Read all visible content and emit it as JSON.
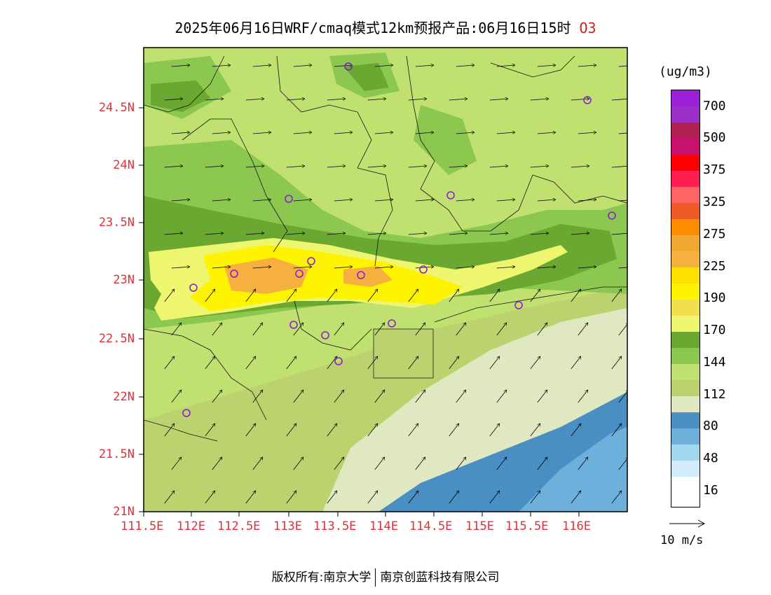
{
  "title": {
    "main": "2025年06月16日WRF/cmaq模式12km预报产品:06月16日15时",
    "species": "O3"
  },
  "axes": {
    "y_labels": [
      "24.5N",
      "24N",
      "23.5N",
      "23N",
      "22.5N",
      "22N",
      "21.5N",
      "21N"
    ],
    "x_labels": [
      "111.5E",
      "112E",
      "112.5E",
      "113E",
      "113.5E",
      "114E",
      "114.5E",
      "115E",
      "115.5E",
      "116E"
    ]
  },
  "legend": {
    "unit": "(ug/m3)",
    "labels": [
      "700",
      "500",
      "375",
      "325",
      "275",
      "225",
      "190",
      "170",
      "144",
      "112",
      "80",
      "48",
      "16"
    ],
    "colors": [
      "#9a1fd6",
      "#9a30c8",
      "#b02050",
      "#c8106e",
      "#ff0000",
      "#ff1e50",
      "#ff6464",
      "#ee5a28",
      "#ff8c00",
      "#f0a830",
      "#f5b040",
      "#ffe000",
      "#fff400",
      "#f0e050",
      "#eef56e",
      "#6aa832",
      "#8cc850",
      "#c0e070",
      "#bcd26e",
      "#dfe8c0",
      "#4a90c4",
      "#6eb0dc",
      "#a0d8f0",
      "#d0ecf8",
      "#ffffff"
    ]
  },
  "wind_reference": {
    "label": "10 m/s"
  },
  "footer": {
    "left": "版权所有:南京大学",
    "right": "南京创蓝科技有限公司"
  },
  "colors": {
    "axis_labels": "#e0303a",
    "station_marker": "#8a1fd0",
    "ocean_dark": "#4a8fc4",
    "ocean_light": "#6eb0dc"
  },
  "stations_count": 19
}
